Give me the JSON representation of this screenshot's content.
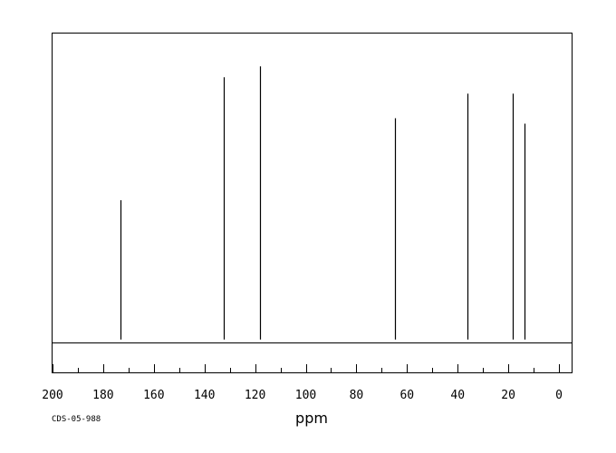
{
  "chart_data": {
    "type": "line",
    "xlabel": "ppm",
    "source_code": "CDS-05-988",
    "xlim": [
      200,
      -5
    ],
    "ylim": [
      -0.12,
      1.12
    ],
    "x_reversed": true,
    "grid": false,
    "legend": "none",
    "x_tick_labels": [
      "200",
      "180",
      "160",
      "140",
      "120",
      "100",
      "80",
      "60",
      "40",
      "20",
      "0"
    ],
    "x_tick_values": [
      200,
      180,
      160,
      140,
      120,
      100,
      80,
      60,
      40,
      20,
      0
    ],
    "series": [
      {
        "peaks": [
          {
            "ppm": 173.3,
            "intensity": 0.51
          },
          {
            "ppm": 132.5,
            "intensity": 0.96
          },
          {
            "ppm": 117.9,
            "intensity": 1.0
          },
          {
            "ppm": 64.9,
            "intensity": 0.81
          },
          {
            "ppm": 36.0,
            "intensity": 0.9
          },
          {
            "ppm": 18.3,
            "intensity": 0.9
          },
          {
            "ppm": 13.6,
            "intensity": 0.79
          }
        ]
      }
    ]
  }
}
